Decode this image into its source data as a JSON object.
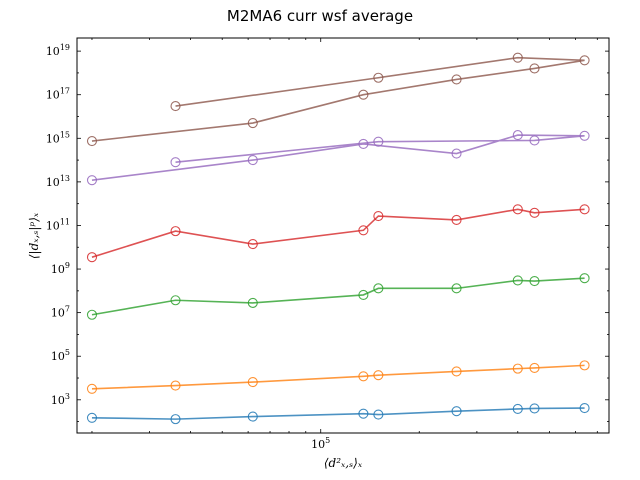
{
  "chart_data": {
    "type": "line",
    "title": "M2MA6 curr wsf average",
    "xlabel": "⟨d²ₓ,ₛ⟩ₓ",
    "ylabel": "⟨|dₓ,ₛ|ᵖ⟩ₓ",
    "xscale": "log",
    "yscale": "log",
    "xlim": [
      18000,
      760000
    ],
    "ylim": [
      30,
      40000000000000000000
    ],
    "grid": false,
    "legend": "none",
    "x_tick_labels": [
      {
        "value": 100000,
        "base": "10",
        "exp": "5"
      }
    ],
    "y_tick_labels": [
      {
        "value": 1000,
        "base": "10",
        "exp": "3"
      },
      {
        "value": 100000,
        "base": "10",
        "exp": "5"
      },
      {
        "value": 10000000,
        "base": "10",
        "exp": "7"
      },
      {
        "value": 1000000000,
        "base": "10",
        "exp": "9"
      },
      {
        "value": 100000000000,
        "base": "10",
        "exp": "11"
      },
      {
        "value": 10000000000000,
        "base": "10",
        "exp": "13"
      },
      {
        "value": 1000000000000000,
        "base": "10",
        "exp": "15"
      },
      {
        "value": 100000000000000000,
        "base": "10",
        "exp": "17"
      },
      {
        "value": 10000000000000000000,
        "base": "10",
        "exp": "19"
      }
    ],
    "series": [
      {
        "color": "#1f77b4",
        "x": [
          20000,
          36000,
          62000,
          135000,
          150000,
          260000,
          400000,
          450000,
          640000
        ],
        "y": [
          150,
          130,
          170,
          230,
          210,
          300,
          380,
          400,
          420
        ]
      },
      {
        "color": "#ff7f0e",
        "x": [
          20000,
          36000,
          62000,
          135000,
          150000,
          260000,
          400000,
          450000,
          640000
        ],
        "y": [
          3200,
          4500,
          6500,
          12000,
          13500,
          20000,
          27000,
          29000,
          38000
        ]
      },
      {
        "color": "#2ca02c",
        "x": [
          20000,
          36000,
          62000,
          135000,
          150000,
          260000,
          400000,
          450000,
          640000
        ],
        "y": [
          8000000,
          37000000,
          28000000,
          65000000,
          130000000,
          130000000,
          300000000,
          280000000,
          380000000
        ]
      },
      {
        "color": "#d62728",
        "x": [
          20000,
          36000,
          62000,
          135000,
          150000,
          260000,
          400000,
          450000,
          640000
        ],
        "y": [
          3500000000,
          55000000000,
          14000000000,
          60000000000,
          270000000000,
          180000000000,
          550000000000,
          380000000000,
          550000000000
        ]
      },
      {
        "color": "#9467bd",
        "x": [
          20000,
          36000,
          62000,
          135000,
          150000,
          260000,
          400000,
          450000,
          640000
        ],
        "y": [
          12000000000000,
          80000000000000,
          100000000000000,
          550000000000000,
          700000000000000,
          200000000000000,
          1400000000000000,
          800000000000000,
          1300000000000000
        ],
        "order": [
          0,
          2,
          3,
          5,
          6,
          8,
          7,
          4,
          1
        ]
      },
      {
        "color": "#8c564b",
        "x": [
          20000,
          36000,
          62000,
          135000,
          150000,
          260000,
          400000,
          450000,
          640000
        ],
        "y": [
          750000000000000,
          30000000000000000,
          5000000000000000,
          100000000000000000,
          600000000000000000,
          500000000000000000,
          5000000000000000000,
          1600000000000000000,
          3800000000000000000
        ],
        "order": [
          0,
          2,
          3,
          5,
          7,
          8,
          6,
          4,
          1
        ]
      }
    ]
  }
}
